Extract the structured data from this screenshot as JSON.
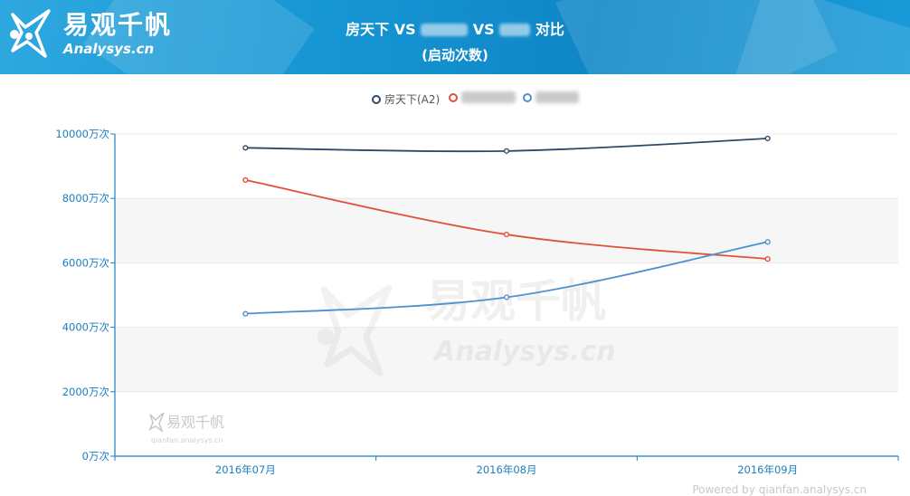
{
  "brand": {
    "name": "易观千帆",
    "domain": "Analysys.cn",
    "watermark_sub": "qianfan.analysys.cn"
  },
  "title": {
    "line1_parts": [
      "房天下 VS ",
      " VS ",
      " 对比"
    ],
    "line2": "(启动次数)"
  },
  "colors": {
    "header_bg": "#1796d4",
    "axis": "#1a7fc1",
    "series": [
      "#2f4a66",
      "#e05238",
      "#4d8fcf"
    ]
  },
  "footer": "Powered by qianfan.analysys.cn",
  "chart_data": {
    "type": "line",
    "x": [
      "2016年07月",
      "2016年08月",
      "2016年09月"
    ],
    "y_ticks": [
      "0万次",
      "2000万次",
      "4000万次",
      "6000万次",
      "8000万次",
      "10000万次"
    ],
    "ylim": [
      0,
      10000
    ],
    "y_unit": "万次",
    "grid": true,
    "legend_position": "top",
    "series": [
      {
        "name": "房天下(A2)",
        "values": [
          9570,
          9470,
          9860
        ],
        "color": "#2f4a66"
      },
      {
        "name": "",
        "values": [
          8570,
          6880,
          6120
        ],
        "color": "#e05238"
      },
      {
        "name": "",
        "values": [
          4420,
          4930,
          6650
        ],
        "color": "#4d8fcf"
      }
    ]
  }
}
